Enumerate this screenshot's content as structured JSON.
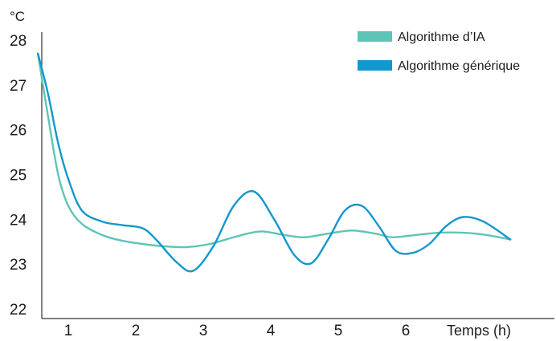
{
  "chart_data": {
    "type": "line",
    "title": "",
    "unit_label": "°C",
    "xlabel": "Temps (h)",
    "ylabel": "",
    "ylim": [
      22,
      28
    ],
    "xlim": [
      0.55,
      7.55
    ],
    "yticks": [
      "22",
      "23",
      "24",
      "25",
      "26",
      "27",
      "28"
    ],
    "xticks": [
      "1",
      "2",
      "3",
      "4",
      "5",
      "6"
    ],
    "grid": false,
    "legend": "top-right",
    "series": [
      {
        "name": "Algorithme d’IA",
        "color": "#5ec4b6",
        "x": [
          0.55,
          0.7,
          0.85,
          1.0,
          1.2,
          1.5,
          1.8,
          2.1,
          2.4,
          2.75,
          3.1,
          3.5,
          3.85,
          4.2,
          4.5,
          4.85,
          5.2,
          5.55,
          5.8,
          6.15,
          6.5,
          6.85,
          7.2,
          7.55
        ],
        "y": [
          27.7,
          26.3,
          25.0,
          24.3,
          23.9,
          23.65,
          23.52,
          23.45,
          23.4,
          23.38,
          23.45,
          23.62,
          23.73,
          23.65,
          23.6,
          23.68,
          23.75,
          23.68,
          23.6,
          23.65,
          23.7,
          23.7,
          23.65,
          23.55
        ]
      },
      {
        "name": "Algorithme générique",
        "color": "#1297cf",
        "x": [
          0.55,
          0.7,
          0.85,
          1.0,
          1.2,
          1.5,
          1.8,
          2.1,
          2.3,
          2.6,
          2.85,
          3.15,
          3.45,
          3.75,
          4.05,
          4.35,
          4.6,
          4.85,
          5.1,
          5.35,
          5.6,
          5.85,
          6.1,
          6.35,
          6.6,
          6.85,
          7.15,
          7.55
        ],
        "y": [
          27.7,
          26.8,
          25.7,
          24.9,
          24.2,
          23.95,
          23.87,
          23.8,
          23.55,
          23.05,
          22.85,
          23.4,
          24.3,
          24.62,
          24.0,
          23.2,
          23.02,
          23.55,
          24.2,
          24.3,
          23.85,
          23.3,
          23.25,
          23.45,
          23.85,
          24.05,
          23.95,
          23.55
        ]
      }
    ]
  }
}
